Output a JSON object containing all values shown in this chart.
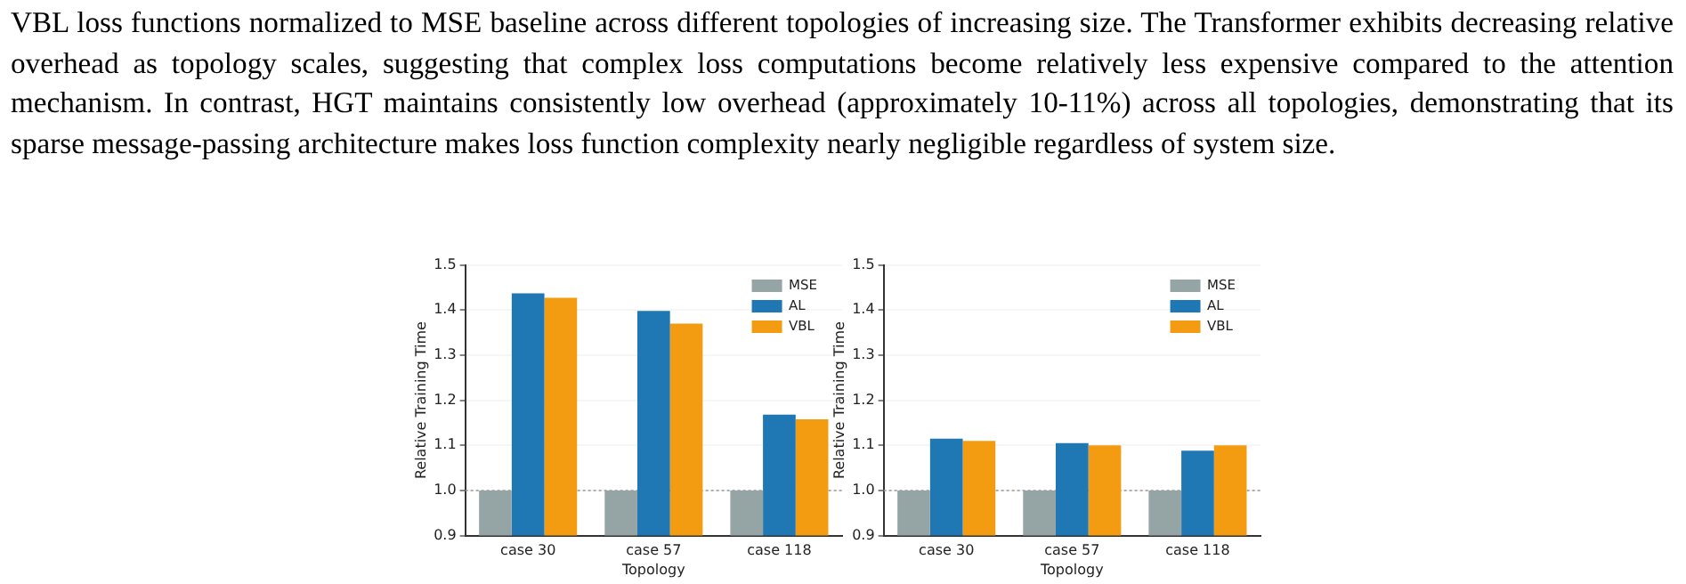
{
  "chart_data": [
    {
      "type": "bar",
      "annotations": [
        "VBL loss functions normalized to MSE baseline across different topologies of increasing size.  The Transformer exhibits decreasing relative overhead as topology scales, suggesting that complex loss computations become relatively less expensive compared to the attention mechanism.  In contrast, HGT maintains consistently low overhead (approximately 10-11%) across all topologies, demonstrating that its sparse message-passing architecture makes loss function complexity nearly negligible regardless of system size."
      ],
      "categories": [
        "case 30",
        "case 57",
        "case 118"
      ],
      "xlabel": "Topology",
      "ylabel": "Relative Training Time",
      "series": [
        {
          "name": "MSE",
          "color": "#95a5a6",
          "values": [
            1.0,
            1.0,
            1.0
          ]
        },
        {
          "name": "AL",
          "color": "#1f77b4",
          "values": [
            1.437,
            1.398,
            1.168
          ]
        },
        {
          "name": "VBL",
          "color": "#f39c12",
          "values": [
            1.427,
            1.37,
            1.158
          ]
        }
      ],
      "ylim": [
        0.9,
        1.5
      ],
      "yticks": [
        0.9,
        {
          "value": 1.0,
          "label": "1.0"
        },
        1.1,
        1.2,
        1.3,
        1.4,
        1.5
      ],
      "grid": "y",
      "legend": "top right",
      "ref_lines": [
        {
          "axis": "y",
          "value": 1.0,
          "color": "#999999",
          "line_style": "dotted"
        }
      ]
    },
    {
      "type": "bar",
      "categories": [
        "case 30",
        "case 57",
        "case 118"
      ],
      "xlabel": "Topology",
      "ylabel": "Relative Training Time",
      "series": [
        {
          "name": "MSE",
          "color": "#95a5a6",
          "values": [
            1.0,
            1.0,
            1.0
          ]
        },
        {
          "name": "AL",
          "color": "#1f77b4",
          "values": [
            1.115,
            1.105,
            1.088
          ]
        },
        {
          "name": "VBL",
          "color": "#f39c12",
          "values": [
            1.11,
            1.1,
            1.1
          ]
        }
      ],
      "ylim": [
        0.9,
        1.5
      ],
      "yticks": [
        0.9,
        {
          "value": 1.0,
          "label": "1.0"
        },
        1.1,
        1.2,
        1.3,
        1.4,
        1.5
      ],
      "grid": "y",
      "legend": "top right",
      "ref_lines": [
        {
          "axis": "y",
          "value": 1.0,
          "color": "#999999",
          "line_style": "dotted"
        }
      ]
    }
  ]
}
